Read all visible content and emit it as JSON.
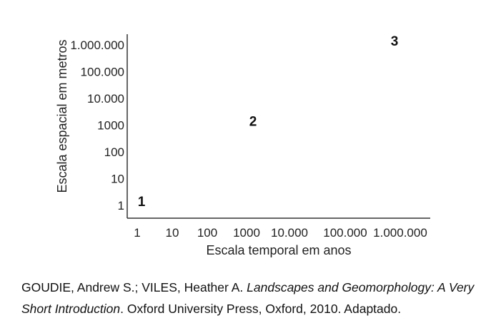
{
  "chart_data": {
    "type": "scatter",
    "xlabel": "Escala temporal em anos",
    "ylabel": "Escala espacial em metros",
    "x_scale": "log",
    "y_scale": "log",
    "x_ticks": [
      "1",
      "10",
      "100",
      "1000",
      "10.000",
      "100.000",
      "1.000.000"
    ],
    "y_ticks": [
      "1",
      "10",
      "100",
      "1000",
      "10.000",
      "100.000",
      "1.000.000"
    ],
    "points": [
      {
        "label": "1",
        "x": 1,
        "y": 1
      },
      {
        "label": "2",
        "x": 1000,
        "y": 1000
      },
      {
        "label": "3",
        "x": 1000000,
        "y": 1000000
      }
    ],
    "grid": false,
    "legend": "none"
  },
  "caption": {
    "authors": "GOUDIE, Andrew S.; VILES, Heather A. ",
    "title": "Landscapes and Geomorphology: A Very Short Introduction",
    "rest": ". Oxford University Press, Oxford, 2010. Adaptado."
  }
}
